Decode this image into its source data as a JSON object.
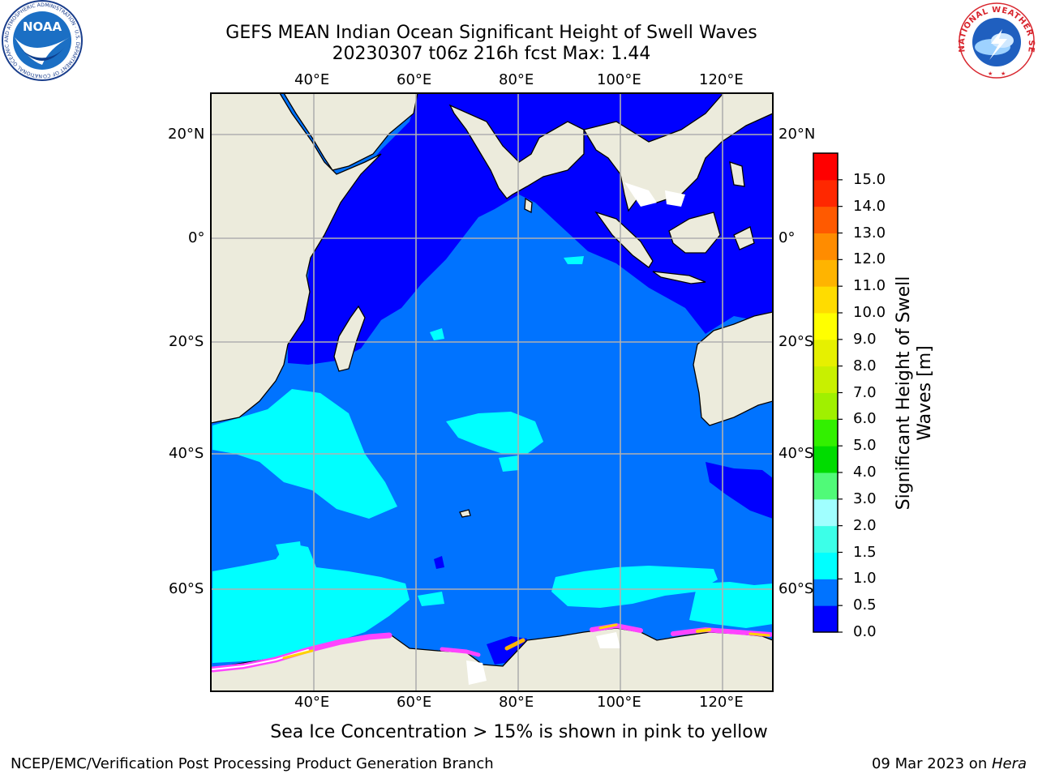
{
  "title": {
    "line1": "GEFS MEAN Indian Ocean Significant Height of Swell Waves",
    "line2": "20230307 t06z 216h fcst   Max: 1.44"
  },
  "map": {
    "lon_labels": [
      "40°E",
      "60°E",
      "80°E",
      "100°E",
      "120°E"
    ],
    "lat_labels": [
      "20°N",
      "0°",
      "20°S",
      "40°S",
      "60°S"
    ]
  },
  "colorbar": {
    "title_line1": "Significant Height of Swell",
    "title_line2": "Waves [m]",
    "ticks": [
      "0.0",
      "0.5",
      "1.0",
      "1.5",
      "2.0",
      "3.0",
      "4.0",
      "5.0",
      "6.0",
      "7.0",
      "8.0",
      "9.0",
      "10.0",
      "11.0",
      "12.0",
      "13.0",
      "14.0",
      "15.0"
    ],
    "colors": [
      "#0000ff",
      "#0073ff",
      "#00ffff",
      "#3cffe8",
      "#a0ffff",
      "#50fa78",
      "#00dc00",
      "#32f000",
      "#a0f000",
      "#c8f000",
      "#e6f000",
      "#ffff00",
      "#ffdc00",
      "#ffb400",
      "#ff8c00",
      "#ff5a00",
      "#ff2800",
      "#ff0000"
    ]
  },
  "caption": "Sea Ice Concentration > 15% is shown in pink to yellow",
  "footer": {
    "credit": "NCEP/EMC/Verification Post Processing Product Generation Branch",
    "date_prefix": "09 Mar 2023 on ",
    "date_machine": "Hera"
  },
  "logos": {
    "noaa_text": "NOAA",
    "noaa_ring_text": "NATIONAL OCEANIC AND ATMOSPHERIC ADMINISTRATION · U.S. DEPARTMENT OF COMMERCE ·",
    "nws_ring_text": "NATIONAL WEATHER SERVICE"
  }
}
